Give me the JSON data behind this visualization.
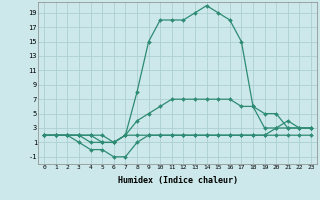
{
  "xlabel": "Humidex (Indice chaleur)",
  "line_color": "#2e8b74",
  "bg_color": "#cce8ea",
  "grid_color": "#aecfd1",
  "xlim": [
    -0.5,
    23.5
  ],
  "ylim": [
    -2,
    20.5
  ],
  "xticks": [
    0,
    1,
    2,
    3,
    4,
    5,
    6,
    7,
    8,
    9,
    10,
    11,
    12,
    13,
    14,
    15,
    16,
    17,
    18,
    19,
    20,
    21,
    22,
    23
  ],
  "yticks": [
    -1,
    1,
    3,
    5,
    7,
    9,
    11,
    13,
    15,
    17,
    19
  ],
  "series": [
    {
      "x": [
        0,
        1,
        2,
        3,
        4,
        5,
        6,
        7,
        8,
        9,
        10,
        11,
        12,
        13,
        14,
        15,
        16,
        17,
        18,
        19,
        20,
        21,
        22,
        23
      ],
      "y": [
        2,
        2,
        2,
        2,
        2,
        2,
        1,
        2,
        2,
        2,
        2,
        2,
        2,
        2,
        2,
        2,
        2,
        2,
        2,
        2,
        2,
        2,
        2,
        2
      ]
    },
    {
      "x": [
        0,
        1,
        2,
        3,
        4,
        5,
        6,
        7,
        8,
        9,
        10,
        11,
        12,
        13,
        14,
        15,
        16,
        17,
        18,
        19,
        20,
        21,
        22,
        23
      ],
      "y": [
        2,
        2,
        2,
        1,
        0,
        0,
        -1,
        -1,
        1,
        2,
        2,
        2,
        2,
        2,
        2,
        2,
        2,
        2,
        2,
        2,
        3,
        3,
        3,
        3
      ]
    },
    {
      "x": [
        0,
        1,
        2,
        3,
        4,
        5,
        6,
        7,
        8,
        9,
        10,
        11,
        12,
        13,
        14,
        15,
        16,
        17,
        18,
        19,
        20,
        21,
        22,
        23
      ],
      "y": [
        2,
        2,
        2,
        2,
        2,
        1,
        1,
        2,
        8,
        15,
        18,
        18,
        18,
        19,
        20,
        19,
        18,
        15,
        6,
        3,
        3,
        4,
        3,
        3
      ]
    },
    {
      "x": [
        0,
        1,
        2,
        3,
        4,
        5,
        6,
        7,
        8,
        9,
        10,
        11,
        12,
        13,
        14,
        15,
        16,
        17,
        18,
        19,
        20,
        21,
        22,
        23
      ],
      "y": [
        2,
        2,
        2,
        2,
        1,
        1,
        1,
        2,
        4,
        5,
        6,
        7,
        7,
        7,
        7,
        7,
        7,
        6,
        6,
        5,
        5,
        3,
        3,
        3
      ]
    }
  ]
}
